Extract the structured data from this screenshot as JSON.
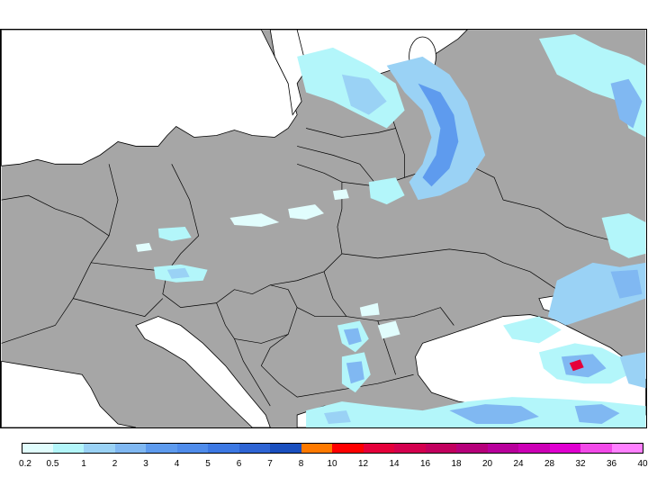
{
  "legend": {
    "colors": [
      "#e1fdfd",
      "#b3f6fa",
      "#9ad2f5",
      "#80b8f2",
      "#5e9bee",
      "#4f8ceb",
      "#3c78e3",
      "#2e64d4",
      "#1a4fbf",
      "#ff7a00",
      "#ff0000",
      "#e5003a",
      "#d4004e",
      "#c2005e",
      "#b6007a",
      "#b8009b",
      "#cc00b5",
      "#e000d0",
      "#f24ae8",
      "#ff80ff"
    ],
    "labels": [
      "0.2",
      "0.5",
      "1",
      "2",
      "3",
      "4",
      "5",
      "6",
      "7",
      "8",
      "10",
      "12",
      "14",
      "16",
      "18",
      "20",
      "24",
      "28",
      "32",
      "36",
      "40"
    ]
  },
  "map": {
    "land_color": "#a6a6a6",
    "sea_color": "#ffffff",
    "border_color": "#000000"
  }
}
